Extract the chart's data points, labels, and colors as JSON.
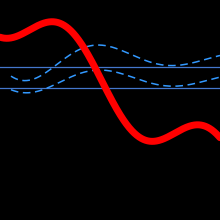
{
  "background_color": "#000000",
  "figure_size": [
    2.2,
    2.2
  ],
  "dpi": 100,
  "xlim": [
    0,
    10
  ],
  "ylim": [
    -7,
    5
  ],
  "potential_color": "#ff0000",
  "potential_linewidth": 5,
  "energy_color": "#4477cc",
  "energy_linewidth": 0.9,
  "wavefunction_color": "#3366cc",
  "wavefunction_linewidth": 1.1,
  "wf_dash_color": "#3399ff"
}
